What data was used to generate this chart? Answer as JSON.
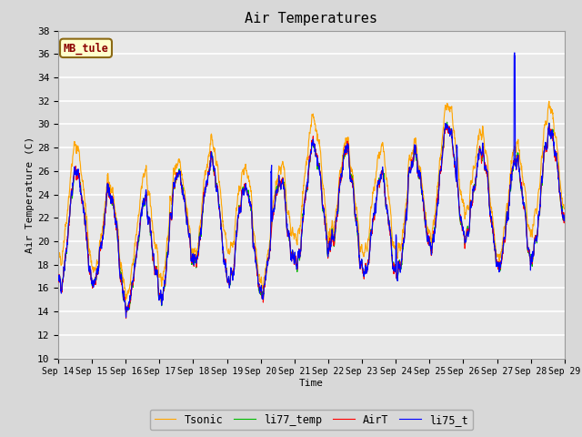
{
  "title": "Air Temperatures",
  "xlabel": "Time",
  "ylabel": "Air Temperature (C)",
  "ylim": [
    10,
    38
  ],
  "yticks": [
    10,
    12,
    14,
    16,
    18,
    20,
    22,
    24,
    26,
    28,
    30,
    32,
    34,
    36,
    38
  ],
  "annotation_text": "MB_tule",
  "annotation_color": "#8B0000",
  "annotation_box_color": "#FFFFCC",
  "annotation_box_edge": "#8B6914",
  "line_colors": {
    "AirT": "#FF0000",
    "li75_t": "#0000FF",
    "li77_temp": "#00BB00",
    "Tsonic": "#FFA500"
  },
  "line_widths": {
    "AirT": 0.8,
    "li75_t": 0.8,
    "li77_temp": 0.8,
    "Tsonic": 0.8
  },
  "x_tick_labels": [
    "Sep 14",
    "Sep 15",
    "Sep 16",
    "Sep 17",
    "Sep 18",
    "Sep 19",
    "Sep 20",
    "Sep 21",
    "Sep 22",
    "Sep 23",
    "Sep 24",
    "Sep 25",
    "Sep 26",
    "Sep 27",
    "Sep 28",
    "Sep 29"
  ],
  "bg_color": "#E8E8E8",
  "grid_color": "#FFFFFF",
  "font_family": "monospace",
  "tick_fontsize": 7,
  "label_fontsize": 8,
  "title_fontsize": 11
}
